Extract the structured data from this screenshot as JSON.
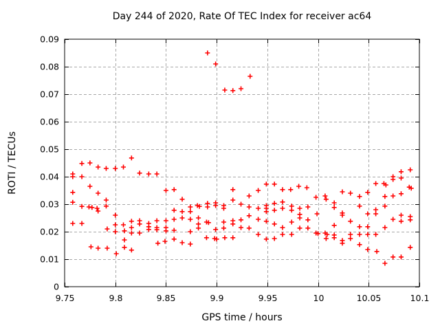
{
  "window": {
    "title": "Day 244 of 2020, Rate Of TEC Index for receiver ac64"
  },
  "colors": {
    "background": "#ffffff",
    "border": "#000000",
    "grid": "#a6a6a6",
    "marker": "#ff0000",
    "text": "#000000"
  },
  "chart_data": {
    "type": "scatter",
    "title": "Day 244 of 2020, Rate Of TEC Index for receiver ac64",
    "xlabel": "GPS time / hours",
    "ylabel": "ROTI / TECUs",
    "xlim": [
      9.75,
      10.1
    ],
    "ylim": [
      0,
      0.09
    ],
    "grid": true,
    "legend": "none",
    "marker": {
      "shape": "plus",
      "color": "#ff0000",
      "size": 7
    },
    "xticks": [
      {
        "value": 9.75,
        "label": "9.75"
      },
      {
        "value": 9.8,
        "label": "9.8"
      },
      {
        "value": 9.85,
        "label": "9.85"
      },
      {
        "value": 9.9,
        "label": "9.9"
      },
      {
        "value": 9.95,
        "label": "9.95"
      },
      {
        "value": 10.0,
        "label": "10"
      },
      {
        "value": 10.05,
        "label": "10.05"
      },
      {
        "value": 10.1,
        "label": "10.1"
      }
    ],
    "yticks": [
      {
        "value": 0,
        "label": "0"
      },
      {
        "value": 0.01,
        "label": "0.01"
      },
      {
        "value": 0.02,
        "label": "0.02"
      },
      {
        "value": 0.03,
        "label": "0.03"
      },
      {
        "value": 0.04,
        "label": "0.04"
      },
      {
        "value": 0.05,
        "label": "0.05"
      },
      {
        "value": 0.06,
        "label": "0.06"
      },
      {
        "value": 0.07,
        "label": "0.07"
      },
      {
        "value": 0.08,
        "label": "0.08"
      },
      {
        "value": 0.09,
        "label": "0.09"
      }
    ],
    "points": [
      [
        9.758,
        0.041
      ],
      [
        9.758,
        0.04
      ],
      [
        9.758,
        0.0343
      ],
      [
        9.758,
        0.0307
      ],
      [
        9.758,
        0.023
      ],
      [
        9.767,
        0.0448
      ],
      [
        9.767,
        0.04
      ],
      [
        9.767,
        0.0292
      ],
      [
        9.767,
        0.023
      ],
      [
        9.775,
        0.045
      ],
      [
        9.775,
        0.0365
      ],
      [
        9.774,
        0.029
      ],
      [
        9.777,
        0.0288
      ],
      [
        9.776,
        0.0145
      ],
      [
        9.783,
        0.0435
      ],
      [
        9.783,
        0.034
      ],
      [
        9.782,
        0.0285
      ],
      [
        9.783,
        0.0275
      ],
      [
        9.783,
        0.014
      ],
      [
        9.791,
        0.043
      ],
      [
        9.791,
        0.0315
      ],
      [
        9.791,
        0.0293
      ],
      [
        9.792,
        0.021
      ],
      [
        9.792,
        0.014
      ],
      [
        9.8,
        0.043
      ],
      [
        9.8,
        0.026
      ],
      [
        9.8,
        0.0225
      ],
      [
        9.8,
        0.02
      ],
      [
        9.801,
        0.012
      ],
      [
        9.808,
        0.0435
      ],
      [
        9.808,
        0.0225
      ],
      [
        9.809,
        0.0203
      ],
      [
        9.809,
        0.017
      ],
      [
        9.809,
        0.0143
      ],
      [
        9.816,
        0.0468
      ],
      [
        9.816,
        0.0238
      ],
      [
        9.816,
        0.0215
      ],
      [
        9.816,
        0.0195
      ],
      [
        9.816,
        0.0133
      ],
      [
        9.824,
        0.0413
      ],
      [
        9.824,
        0.024
      ],
      [
        9.824,
        0.0228
      ],
      [
        9.824,
        0.0195
      ],
      [
        9.833,
        0.041
      ],
      [
        9.833,
        0.023
      ],
      [
        9.833,
        0.0218
      ],
      [
        9.833,
        0.0208
      ],
      [
        9.841,
        0.041
      ],
      [
        9.841,
        0.024
      ],
      [
        9.841,
        0.0215
      ],
      [
        9.841,
        0.0207
      ],
      [
        9.842,
        0.0158
      ],
      [
        9.85,
        0.035
      ],
      [
        9.85,
        0.024
      ],
      [
        9.85,
        0.0215
      ],
      [
        9.85,
        0.0203
      ],
      [
        9.849,
        0.0165
      ],
      [
        9.858,
        0.0353
      ],
      [
        9.858,
        0.0278
      ],
      [
        9.858,
        0.0245
      ],
      [
        9.858,
        0.0205
      ],
      [
        9.858,
        0.0173
      ],
      [
        9.866,
        0.0318
      ],
      [
        9.866,
        0.0273
      ],
      [
        9.866,
        0.025
      ],
      [
        9.866,
        0.016
      ],
      [
        9.874,
        0.029
      ],
      [
        9.874,
        0.0273
      ],
      [
        9.874,
        0.0245
      ],
      [
        9.874,
        0.02
      ],
      [
        9.874,
        0.0155
      ],
      [
        9.881,
        0.0295
      ],
      [
        9.883,
        0.0292
      ],
      [
        9.882,
        0.025
      ],
      [
        9.882,
        0.0228
      ],
      [
        9.882,
        0.0213
      ],
      [
        9.891,
        0.085
      ],
      [
        9.891,
        0.0303
      ],
      [
        9.891,
        0.029
      ],
      [
        9.89,
        0.0235
      ],
      [
        9.892,
        0.0233
      ],
      [
        9.89,
        0.0178
      ],
      [
        9.899,
        0.081
      ],
      [
        9.899,
        0.0305
      ],
      [
        9.899,
        0.0295
      ],
      [
        9.899,
        0.0208
      ],
      [
        9.898,
        0.0175
      ],
      [
        9.9,
        0.0173
      ],
      [
        9.908,
        0.0715
      ],
      [
        9.907,
        0.0295
      ],
      [
        9.907,
        0.0285
      ],
      [
        9.907,
        0.0235
      ],
      [
        9.907,
        0.0213
      ],
      [
        9.908,
        0.0178
      ],
      [
        9.916,
        0.0713
      ],
      [
        9.916,
        0.0353
      ],
      [
        9.916,
        0.0315
      ],
      [
        9.916,
        0.024
      ],
      [
        9.916,
        0.0228
      ],
      [
        9.916,
        0.0178
      ],
      [
        9.924,
        0.072
      ],
      [
        9.924,
        0.03
      ],
      [
        9.924,
        0.0243
      ],
      [
        9.924,
        0.0215
      ],
      [
        9.933,
        0.0765
      ],
      [
        9.932,
        0.033
      ],
      [
        9.932,
        0.029
      ],
      [
        9.932,
        0.0258
      ],
      [
        9.932,
        0.0213
      ],
      [
        9.941,
        0.035
      ],
      [
        9.941,
        0.0285
      ],
      [
        9.941,
        0.0245
      ],
      [
        9.941,
        0.019
      ],
      [
        9.949,
        0.0373
      ],
      [
        9.949,
        0.0295
      ],
      [
        9.949,
        0.0285
      ],
      [
        9.949,
        0.0273
      ],
      [
        9.949,
        0.0238
      ],
      [
        9.949,
        0.0173
      ],
      [
        9.957,
        0.0373
      ],
      [
        9.957,
        0.0303
      ],
      [
        9.957,
        0.0278
      ],
      [
        9.957,
        0.0228
      ],
      [
        9.957,
        0.0175
      ],
      [
        9.965,
        0.0353
      ],
      [
        9.965,
        0.0308
      ],
      [
        9.965,
        0.0285
      ],
      [
        9.965,
        0.0215
      ],
      [
        9.965,
        0.019
      ],
      [
        9.973,
        0.0353
      ],
      [
        9.974,
        0.0293
      ],
      [
        9.974,
        0.0278
      ],
      [
        9.974,
        0.0235
      ],
      [
        9.974,
        0.019
      ],
      [
        9.981,
        0.0365
      ],
      [
        9.982,
        0.0285
      ],
      [
        9.982,
        0.0263
      ],
      [
        9.982,
        0.025
      ],
      [
        9.982,
        0.0213
      ],
      [
        9.989,
        0.036
      ],
      [
        9.99,
        0.029
      ],
      [
        9.99,
        0.0243
      ],
      [
        9.99,
        0.0213
      ],
      [
        9.998,
        0.0325
      ],
      [
        9.999,
        0.0265
      ],
      [
        9.998,
        0.0195
      ],
      [
        10.0,
        0.0193
      ],
      [
        10.007,
        0.033
      ],
      [
        10.008,
        0.0318
      ],
      [
        10.007,
        0.0195
      ],
      [
        10.009,
        0.019
      ],
      [
        10.008,
        0.0175
      ],
      [
        10.016,
        0.0305
      ],
      [
        10.016,
        0.0288
      ],
      [
        10.016,
        0.0223
      ],
      [
        10.016,
        0.0188
      ],
      [
        10.016,
        0.0178
      ],
      [
        10.024,
        0.0345
      ],
      [
        10.024,
        0.0268
      ],
      [
        10.024,
        0.026
      ],
      [
        10.024,
        0.0168
      ],
      [
        10.024,
        0.0158
      ],
      [
        10.032,
        0.034
      ],
      [
        10.032,
        0.0238
      ],
      [
        10.032,
        0.019
      ],
      [
        10.032,
        0.0175
      ],
      [
        10.041,
        0.0328
      ],
      [
        10.041,
        0.0293
      ],
      [
        10.041,
        0.0218
      ],
      [
        10.041,
        0.019
      ],
      [
        10.041,
        0.0153
      ],
      [
        10.049,
        0.0343
      ],
      [
        10.049,
        0.0265
      ],
      [
        10.049,
        0.0218
      ],
      [
        10.049,
        0.019
      ],
      [
        10.049,
        0.0135
      ],
      [
        10.057,
        0.0375
      ],
      [
        10.057,
        0.028
      ],
      [
        10.057,
        0.0265
      ],
      [
        10.057,
        0.019
      ],
      [
        10.058,
        0.0128
      ],
      [
        10.065,
        0.0375
      ],
      [
        10.067,
        0.037
      ],
      [
        10.066,
        0.0328
      ],
      [
        10.066,
        0.0293
      ],
      [
        10.066,
        0.0215
      ],
      [
        10.066,
        0.0085
      ],
      [
        10.074,
        0.04
      ],
      [
        10.074,
        0.039
      ],
      [
        10.074,
        0.033
      ],
      [
        10.074,
        0.0245
      ],
      [
        10.074,
        0.0108
      ],
      [
        10.082,
        0.0418
      ],
      [
        10.082,
        0.0395
      ],
      [
        10.082,
        0.0338
      ],
      [
        10.082,
        0.026
      ],
      [
        10.082,
        0.0238
      ],
      [
        10.082,
        0.0108
      ],
      [
        10.091,
        0.0425
      ],
      [
        10.09,
        0.0362
      ],
      [
        10.092,
        0.0358
      ],
      [
        10.091,
        0.0255
      ],
      [
        10.091,
        0.0243
      ],
      [
        10.091,
        0.0143
      ]
    ]
  }
}
